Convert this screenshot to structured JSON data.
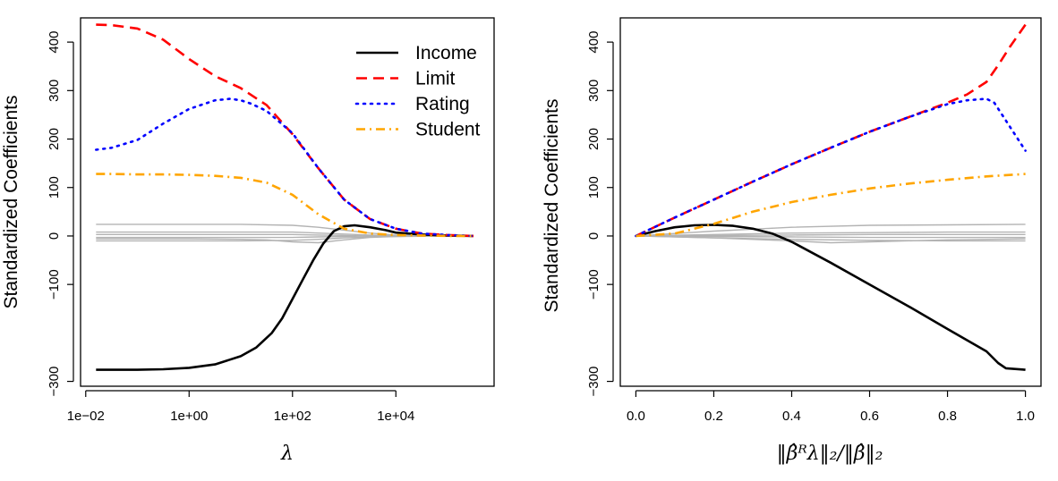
{
  "chart_data": [
    {
      "type": "line",
      "xscale": "log10",
      "xlabel": "λ",
      "ylabel": "Standardized Coefficients",
      "xlim": [
        -2.1,
        5.9
      ],
      "ylim": [
        -310,
        450
      ],
      "xticks": [
        -2,
        0,
        2,
        4
      ],
      "xtick_labels": [
        "1e−02",
        "1e+00",
        "1e+02",
        "1e+04"
      ],
      "yticks": [
        -300,
        -100,
        0,
        100,
        200,
        300,
        400
      ],
      "ytick_labels": [
        "−300",
        "−100",
        "0",
        "100",
        "200",
        "300",
        "400"
      ],
      "legend": {
        "position": "top-right",
        "entries": [
          "Income",
          "Limit",
          "Rating",
          "Student"
        ]
      },
      "series": [
        {
          "name": "Income",
          "color": "#000000",
          "style": "solid",
          "x": [
            -1.8,
            -1,
            -0.5,
            0,
            0.5,
            1,
            1.3,
            1.6,
            1.8,
            2,
            2.2,
            2.4,
            2.6,
            2.8,
            3,
            3.2,
            3.5,
            3.8,
            4,
            4.5,
            5,
            5.5
          ],
          "y": [
            -276,
            -276,
            -275,
            -272,
            -265,
            -248,
            -230,
            -200,
            -170,
            -130,
            -90,
            -50,
            -15,
            10,
            20,
            22,
            18,
            12,
            7,
            3,
            1,
            0
          ]
        },
        {
          "name": "Limit",
          "color": "#ff0000",
          "style": "dashed",
          "x": [
            -1.8,
            -1.5,
            -1,
            -0.5,
            0,
            0.5,
            1,
            1.5,
            2,
            2.5,
            3,
            3.5,
            4,
            4.5,
            5,
            5.5
          ],
          "y": [
            436,
            435,
            428,
            405,
            365,
            330,
            305,
            270,
            210,
            140,
            75,
            35,
            15,
            5,
            2,
            0
          ]
        },
        {
          "name": "Rating",
          "color": "#0000ff",
          "style": "dotted",
          "x": [
            -1.8,
            -1.5,
            -1,
            -0.5,
            0,
            0.5,
            0.8,
            1,
            1.2,
            1.5,
            2,
            2.5,
            3,
            3.5,
            4,
            4.5,
            5,
            5.5
          ],
          "y": [
            178,
            182,
            198,
            232,
            262,
            280,
            283,
            280,
            273,
            258,
            212,
            140,
            75,
            35,
            15,
            5,
            2,
            0
          ]
        },
        {
          "name": "Student",
          "color": "#ffa500",
          "style": "dashdot",
          "x": [
            -1.8,
            -1.5,
            -1,
            -0.5,
            0,
            0.5,
            1,
            1.5,
            2,
            2.5,
            3,
            3.5,
            4,
            4.5,
            5,
            5.5
          ],
          "y": [
            128,
            128,
            127,
            127,
            126,
            124,
            120,
            110,
            85,
            45,
            15,
            5,
            2,
            1,
            0,
            0
          ]
        },
        {
          "name": "Other variables",
          "color": "#b3b3b3",
          "style": "solid",
          "legend": false,
          "x": [
            -1.8,
            0,
            1,
            2,
            2.5,
            3,
            3.5,
            4,
            4.5,
            5.5
          ],
          "y": [
            24,
            24,
            24,
            22,
            18,
            12,
            6,
            2,
            0,
            0
          ]
        },
        {
          "name": "Other variables",
          "color": "#b3b3b3",
          "style": "solid",
          "legend": false,
          "x": [
            -1.8,
            0,
            1,
            2,
            2.5,
            3,
            3.5,
            4,
            4.5,
            5.5
          ],
          "y": [
            8,
            8,
            8,
            8,
            6,
            4,
            2,
            1,
            0,
            0
          ]
        },
        {
          "name": "Other variables",
          "color": "#b3b3b3",
          "style": "solid",
          "legend": false,
          "x": [
            -1.8,
            0,
            1,
            2,
            2.5,
            3,
            3.5,
            4,
            4.5,
            5.5
          ],
          "y": [
            3,
            3,
            3,
            3,
            2,
            1,
            0,
            0,
            0,
            0
          ]
        },
        {
          "name": "Other variables",
          "color": "#b3b3b3",
          "style": "solid",
          "legend": false,
          "x": [
            -1.8,
            0,
            1,
            2,
            2.5,
            3,
            3.5,
            4,
            4.5,
            5.5
          ],
          "y": [
            -3,
            -3,
            -3,
            -3,
            -2,
            -1,
            0,
            0,
            0,
            0
          ]
        },
        {
          "name": "Other variables",
          "color": "#b3b3b3",
          "style": "solid",
          "legend": false,
          "x": [
            -1.8,
            0,
            1,
            1.5,
            2,
            2.5,
            3,
            3.5,
            4,
            5.5
          ],
          "y": [
            -6,
            -6,
            -7,
            -8,
            -12,
            -14,
            -8,
            -3,
            -1,
            0
          ]
        },
        {
          "name": "Other variables",
          "color": "#b3b3b3",
          "style": "solid",
          "legend": false,
          "x": [
            -1.8,
            0,
            1,
            2,
            2.5,
            3,
            3.5,
            4,
            4.5,
            5.5
          ],
          "y": [
            -10,
            -10,
            -10,
            -9,
            -7,
            -4,
            -2,
            -1,
            0,
            0
          ]
        }
      ]
    },
    {
      "type": "line",
      "xlabel": "‖β̂ᴿλ‖₂/‖β̂‖₂",
      "ylabel": "Standardized Coefficients",
      "xlim": [
        -0.04,
        1.04
      ],
      "ylim": [
        -310,
        450
      ],
      "xticks": [
        0,
        0.2,
        0.4,
        0.6,
        0.8,
        1
      ],
      "xtick_labels": [
        "0.0",
        "0.2",
        "0.4",
        "0.6",
        "0.8",
        "1.0"
      ],
      "yticks": [
        -300,
        -100,
        0,
        100,
        200,
        300,
        400
      ],
      "ytick_labels": [
        "−300",
        "−100",
        "0",
        "100",
        "200",
        "300",
        "400"
      ],
      "series": [
        {
          "name": "Income",
          "color": "#000000",
          "style": "solid",
          "x": [
            0,
            0.05,
            0.1,
            0.15,
            0.2,
            0.25,
            0.3,
            0.35,
            0.4,
            0.5,
            0.6,
            0.7,
            0.8,
            0.9,
            0.93,
            0.95,
            1
          ],
          "y": [
            0,
            10,
            18,
            22,
            23,
            21,
            15,
            5,
            -12,
            -55,
            -100,
            -145,
            -192,
            -238,
            -262,
            -273,
            -276
          ]
        },
        {
          "name": "Limit",
          "color": "#ff0000",
          "style": "dashed",
          "x": [
            0,
            0.1,
            0.2,
            0.3,
            0.4,
            0.5,
            0.6,
            0.7,
            0.8,
            0.85,
            0.9,
            0.93,
            0.96,
            1
          ],
          "y": [
            0,
            38,
            75,
            112,
            148,
            182,
            215,
            245,
            275,
            292,
            318,
            352,
            390,
            436
          ]
        },
        {
          "name": "Rating",
          "color": "#0000ff",
          "style": "dotted",
          "x": [
            0,
            0.1,
            0.2,
            0.3,
            0.4,
            0.5,
            0.6,
            0.7,
            0.8,
            0.85,
            0.9,
            0.92,
            0.95,
            1
          ],
          "y": [
            0,
            38,
            75,
            112,
            148,
            182,
            215,
            245,
            272,
            280,
            283,
            275,
            238,
            176
          ]
        },
        {
          "name": "Student",
          "color": "#ffa500",
          "style": "dashdot",
          "x": [
            0,
            0.1,
            0.2,
            0.3,
            0.4,
            0.5,
            0.6,
            0.7,
            0.8,
            0.9,
            1
          ],
          "y": [
            0,
            5,
            25,
            50,
            70,
            85,
            98,
            108,
            116,
            123,
            128
          ]
        },
        {
          "name": "Other variables",
          "color": "#b3b3b3",
          "style": "solid",
          "legend": false,
          "x": [
            0,
            0.2,
            0.4,
            0.6,
            0.8,
            1
          ],
          "y": [
            0,
            10,
            18,
            22,
            23,
            24
          ]
        },
        {
          "name": "Other variables",
          "color": "#b3b3b3",
          "style": "solid",
          "legend": false,
          "x": [
            0,
            0.2,
            0.4,
            0.6,
            0.8,
            1
          ],
          "y": [
            0,
            3,
            6,
            7,
            8,
            8
          ]
        },
        {
          "name": "Other variables",
          "color": "#b3b3b3",
          "style": "solid",
          "legend": false,
          "x": [
            0,
            0.2,
            0.4,
            0.6,
            0.8,
            1
          ],
          "y": [
            0,
            1,
            2,
            3,
            3,
            3
          ]
        },
        {
          "name": "Other variables",
          "color": "#b3b3b3",
          "style": "solid",
          "legend": false,
          "x": [
            0,
            0.2,
            0.4,
            0.6,
            0.8,
            1
          ],
          "y": [
            0,
            -1,
            -2,
            -3,
            -3,
            -3
          ]
        },
        {
          "name": "Other variables",
          "color": "#b3b3b3",
          "style": "solid",
          "legend": false,
          "x": [
            0,
            0.2,
            0.4,
            0.5,
            0.6,
            0.8,
            1
          ],
          "y": [
            0,
            -4,
            -10,
            -14,
            -12,
            -8,
            -6
          ]
        },
        {
          "name": "Other variables",
          "color": "#b3b3b3",
          "style": "solid",
          "legend": false,
          "x": [
            0,
            0.2,
            0.4,
            0.6,
            0.8,
            1
          ],
          "y": [
            0,
            -4,
            -7,
            -9,
            -10,
            -10
          ]
        }
      ]
    }
  ]
}
